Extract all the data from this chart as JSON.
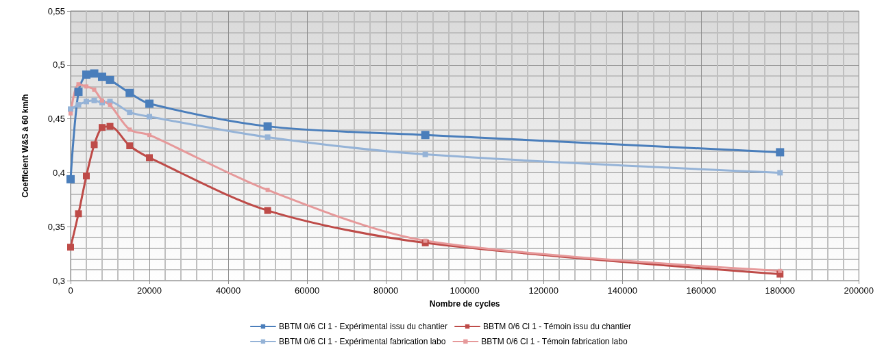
{
  "chart_data": {
    "type": "line",
    "xlabel": "Nombre de cycles",
    "ylabel": "Coefficient W&S à 60 km/h",
    "x": [
      0,
      2000,
      4000,
      6000,
      8000,
      10000,
      15000,
      20000,
      50000,
      90000,
      180000
    ],
    "xlim": [
      0,
      200000
    ],
    "xticks": [
      0,
      20000,
      40000,
      60000,
      80000,
      100000,
      120000,
      140000,
      160000,
      180000,
      200000
    ],
    "ylim": [
      0.3,
      0.55
    ],
    "yticks": [
      {
        "value": 0.3,
        "label": "0,3"
      },
      {
        "value": 0.35,
        "label": "0,35"
      },
      {
        "value": 0.4,
        "label": "0,4"
      },
      {
        "value": 0.45,
        "label": "0,45"
      },
      {
        "value": 0.5,
        "label": "0,5"
      },
      {
        "value": 0.55,
        "label": "0,55"
      }
    ],
    "grid": true,
    "legend": "bottom",
    "marker": "square",
    "line_style": "solid",
    "series": [
      {
        "name": "BBTM 0/6 Cl 1 - Expérimental issu du chantier",
        "color": "#4a7ebb",
        "values": [
          0.394,
          0.475,
          0.491,
          0.492,
          0.489,
          0.486,
          0.474,
          0.464,
          0.443,
          0.435,
          0.419
        ]
      },
      {
        "name": "BBTM 0/6 Cl 1 - Témoin issu du chantier",
        "color": "#be4b48",
        "values": [
          0.331,
          0.362,
          0.397,
          0.426,
          0.442,
          0.443,
          0.425,
          0.414,
          0.365,
          0.335,
          0.306
        ]
      },
      {
        "name": "BBTM 0/6 Cl 1 - Expérimental fabrication labo",
        "color": "#95b3d7",
        "values": [
          0.459,
          0.463,
          0.466,
          0.467,
          0.465,
          0.466,
          0.456,
          0.452,
          0.433,
          0.417,
          0.4
        ]
      },
      {
        "name": "BBTM 0/6 Cl 1 - Témoin fabrication labo",
        "color": "#e6999a",
        "values": [
          0.455,
          0.482,
          0.48,
          0.477,
          0.467,
          0.463,
          0.44,
          0.435,
          0.384,
          0.337,
          0.309
        ]
      }
    ]
  }
}
